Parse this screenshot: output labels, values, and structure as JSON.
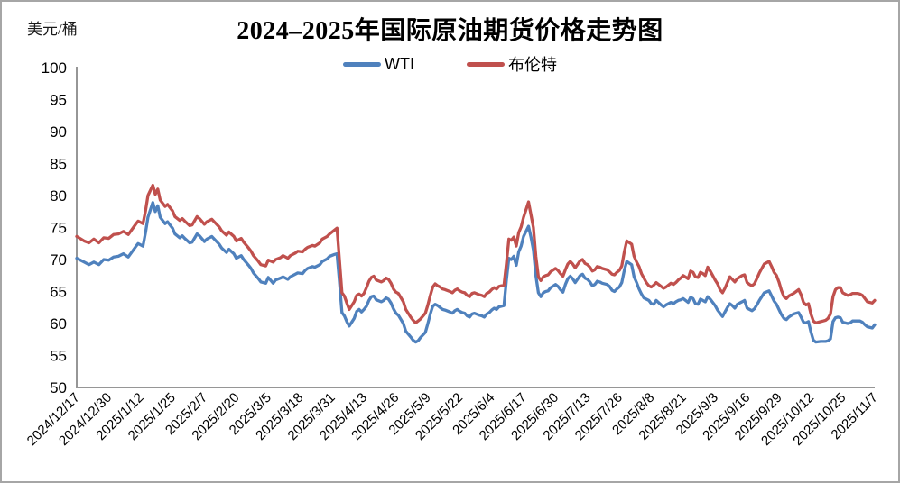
{
  "window": {
    "background": "#ffffff",
    "frame_border_color": "#a6a6a6"
  },
  "header": {
    "title": "2024–2025年国际原油期货价格走势图",
    "y_axis_unit": "美元/桶"
  },
  "legend": {
    "position": "top-center",
    "items": [
      {
        "label": "WTI",
        "color": "#4F81BD"
      },
      {
        "label": "布伦特",
        "color": "#C0504D"
      }
    ]
  },
  "chart_data": {
    "type": "line",
    "title": "2024–2025年国际原油期货价格走势图",
    "xlabel": "",
    "ylabel": "美元/桶",
    "ylim": [
      50,
      100
    ],
    "y_ticks": [
      100,
      95,
      90,
      85,
      80,
      75,
      70,
      65,
      60,
      55,
      50
    ],
    "grid": false,
    "axis_color": "#969696",
    "x_labels": [
      "2024/12/17",
      "2024/12/30",
      "2025/1/12",
      "2025/1/25",
      "2025/2/7",
      "2025/2/20",
      "2025/3/5",
      "2025/3/18",
      "2025/3/31",
      "2025/4/13",
      "2025/4/26",
      "2025/5/9",
      "2025/5/22",
      "2025/6/4",
      "2025/6/17",
      "2025/6/30",
      "2025/7/13",
      "2025/7/26",
      "2025/8/8",
      "2025/8/21",
      "2025/9/3",
      "2025/9/16",
      "2025/9/29",
      "2025/10/12",
      "2025/10/25",
      "2025/11/7"
    ],
    "x_label_interval_days": 13,
    "x_range_days": [
      0,
      325
    ],
    "x_days": [
      0,
      3,
      5,
      7,
      9,
      11,
      13,
      15,
      17,
      19,
      21,
      24,
      25,
      27,
      28,
      29,
      31,
      32,
      33,
      34,
      36,
      37,
      39,
      40,
      42,
      43,
      44,
      46,
      47,
      49,
      50,
      52,
      53,
      55,
      56,
      58,
      59,
      61,
      62,
      64,
      65,
      67,
      68,
      70,
      71,
      72,
      74,
      75,
      77,
      78,
      80,
      81,
      83,
      84,
      86,
      87,
      89,
      90,
      92,
      93,
      94,
      96,
      97,
      99,
      100,
      102,
      103,
      105,
      106,
      107,
      108,
      109,
      110,
      111,
      113,
      114,
      115,
      116,
      117,
      118,
      119,
      120,
      121,
      122,
      124,
      125,
      126,
      127,
      128,
      129,
      130,
      131,
      133,
      134,
      136,
      137,
      138,
      139,
      140,
      142,
      143,
      144,
      145,
      146,
      147,
      148,
      149,
      150,
      152,
      153,
      154,
      155,
      156,
      157,
      158,
      159,
      160,
      161,
      162,
      164,
      165,
      166,
      167,
      168,
      169,
      170,
      171,
      172,
      174,
      175,
      176,
      177,
      178,
      179,
      180,
      181,
      182,
      184,
      185,
      186,
      187,
      188,
      189,
      190,
      191,
      192,
      193,
      195,
      196,
      197,
      198,
      199,
      200,
      201,
      202,
      203,
      205,
      206,
      207,
      208,
      209,
      210,
      211,
      212,
      213,
      214,
      216,
      217,
      218,
      219,
      220,
      221,
      222,
      223,
      224,
      226,
      227,
      228,
      229,
      230,
      231,
      232,
      233,
      234,
      235,
      236,
      238,
      239,
      240,
      241,
      242,
      243,
      244,
      245,
      246,
      247,
      249,
      250,
      251,
      252,
      253,
      254,
      255,
      256,
      257,
      258,
      260,
      261,
      262,
      263,
      264,
      265,
      266,
      267,
      268,
      269,
      271,
      272,
      273,
      274,
      275,
      276,
      277,
      278,
      279,
      280,
      282,
      283,
      284,
      285,
      286,
      287,
      288,
      289,
      290,
      292,
      293,
      294,
      295,
      296,
      297,
      298,
      299,
      300,
      301,
      303,
      304,
      305,
      306,
      307,
      308,
      309,
      310,
      311,
      312,
      314,
      315,
      316,
      317,
      318,
      319,
      320,
      321,
      322,
      324,
      325
    ],
    "series": [
      {
        "name": "WTI",
        "color": "#4F81BD",
        "values": [
          70.2,
          69.6,
          69.2,
          69.6,
          69.2,
          70.0,
          69.9,
          70.4,
          70.5,
          70.9,
          70.4,
          72.0,
          72.5,
          72.1,
          74.2,
          76.6,
          78.9,
          77.5,
          78.4,
          76.6,
          75.6,
          75.9,
          74.9,
          74.0,
          73.4,
          73.7,
          73.3,
          72.6,
          72.7,
          74.0,
          73.7,
          72.8,
          73.2,
          73.6,
          73.2,
          72.4,
          71.8,
          71.1,
          71.6,
          70.9,
          70.2,
          70.6,
          70.0,
          69.1,
          68.6,
          67.9,
          67.0,
          66.5,
          66.3,
          67.2,
          66.3,
          66.8,
          67.1,
          67.3,
          66.9,
          67.3,
          67.7,
          67.9,
          67.8,
          68.3,
          68.6,
          68.9,
          68.8,
          69.2,
          69.7,
          70.1,
          70.5,
          70.8,
          70.9,
          66.6,
          61.7,
          61.2,
          60.3,
          59.6,
          60.8,
          61.9,
          62.2,
          61.8,
          62.2,
          62.7,
          63.6,
          64.2,
          64.3,
          63.7,
          63.4,
          63.6,
          64.0,
          63.8,
          63.2,
          62.3,
          61.6,
          61.3,
          60.0,
          58.8,
          57.9,
          57.4,
          57.1,
          57.3,
          57.8,
          58.6,
          60.0,
          61.5,
          62.7,
          63.0,
          62.8,
          62.5,
          62.2,
          62.1,
          61.8,
          61.6,
          62.0,
          62.2,
          61.9,
          61.7,
          61.6,
          61.2,
          61.0,
          61.5,
          61.6,
          61.3,
          61.2,
          61.0,
          61.5,
          61.7,
          62.1,
          62.4,
          62.2,
          62.6,
          62.8,
          66.8,
          70.2,
          70.0,
          70.5,
          69.1,
          71.2,
          72.1,
          73.6,
          75.2,
          73.5,
          71.5,
          67.5,
          64.8,
          64.2,
          64.8,
          65.0,
          65.1,
          65.6,
          66.1,
          65.8,
          65.3,
          64.9,
          66.1,
          67.0,
          67.4,
          67.0,
          66.4,
          67.5,
          67.7,
          67.1,
          66.9,
          66.5,
          65.9,
          66.1,
          66.6,
          66.5,
          66.3,
          66.1,
          65.8,
          65.2,
          65.0,
          65.4,
          65.7,
          66.4,
          68.3,
          69.7,
          69.2,
          67.3,
          66.4,
          65.4,
          64.6,
          64.0,
          63.8,
          63.6,
          63.1,
          63.0,
          63.6,
          62.9,
          62.6,
          62.9,
          63.1,
          63.3,
          63.1,
          63.4,
          63.6,
          63.7,
          63.9,
          63.3,
          64.1,
          63.9,
          63.1,
          63.0,
          63.8,
          63.6,
          63.4,
          64.2,
          63.8,
          62.8,
          62.1,
          61.6,
          61.1,
          61.8,
          62.5,
          63.1,
          62.8,
          62.4,
          63.0,
          63.4,
          63.6,
          62.4,
          62.2,
          62.0,
          62.3,
          62.9,
          63.6,
          64.2,
          64.8,
          65.1,
          64.3,
          63.5,
          63.0,
          62.2,
          61.4,
          60.8,
          60.6,
          61.0,
          61.5,
          61.6,
          61.7,
          61.0,
          60.2,
          60.1,
          60.3,
          58.7,
          57.4,
          57.1,
          57.2,
          57.2,
          57.2,
          57.3,
          57.6,
          60.3,
          60.9,
          61.0,
          60.9,
          60.2,
          60.0,
          60.1,
          60.4,
          60.4,
          60.4,
          60.4,
          60.2,
          59.8,
          59.5,
          59.3,
          59.8
        ]
      },
      {
        "name": "布伦特",
        "color": "#C0504D",
        "values": [
          73.6,
          72.9,
          72.6,
          73.2,
          72.6,
          73.4,
          73.3,
          73.9,
          74.0,
          74.4,
          73.9,
          75.5,
          76.0,
          75.6,
          77.6,
          80.0,
          81.6,
          80.2,
          81.0,
          79.3,
          78.3,
          78.6,
          77.6,
          76.7,
          76.1,
          76.4,
          76.0,
          75.3,
          75.4,
          76.7,
          76.4,
          75.5,
          75.9,
          76.3,
          75.9,
          75.1,
          74.5,
          73.8,
          74.3,
          73.6,
          72.9,
          73.3,
          72.7,
          71.8,
          71.3,
          70.6,
          69.7,
          69.2,
          69.0,
          69.9,
          69.6,
          70.0,
          70.3,
          70.6,
          70.2,
          70.6,
          71.0,
          71.3,
          71.2,
          71.6,
          71.9,
          72.2,
          72.1,
          72.6,
          73.2,
          73.6,
          74.0,
          74.6,
          74.9,
          70.0,
          64.8,
          64.3,
          63.2,
          62.2,
          63.4,
          64.4,
          64.6,
          64.3,
          64.7,
          65.6,
          66.6,
          67.2,
          67.4,
          66.8,
          66.5,
          66.7,
          67.1,
          66.9,
          66.3,
          65.4,
          64.9,
          64.7,
          63.4,
          62.2,
          61.0,
          60.5,
          60.1,
          60.4,
          60.7,
          61.6,
          62.9,
          64.4,
          65.7,
          66.2,
          65.9,
          65.7,
          65.4,
          65.3,
          65.0,
          64.8,
          65.2,
          65.4,
          65.1,
          64.9,
          64.8,
          64.4,
          64.2,
          64.7,
          64.8,
          64.5,
          64.4,
          64.2,
          64.7,
          64.9,
          65.3,
          65.6,
          65.4,
          65.8,
          66.0,
          69.4,
          73.2,
          73.0,
          73.5,
          72.1,
          74.2,
          75.1,
          76.6,
          79.0,
          77.0,
          75.0,
          70.5,
          67.3,
          66.7,
          67.3,
          67.5,
          67.6,
          68.1,
          68.6,
          68.3,
          67.8,
          67.4,
          68.4,
          69.3,
          69.7,
          69.3,
          68.7,
          69.8,
          70.0,
          69.4,
          69.2,
          68.8,
          68.2,
          68.4,
          68.9,
          68.8,
          68.6,
          68.4,
          68.1,
          67.7,
          67.6,
          68.0,
          68.3,
          69.0,
          71.2,
          72.9,
          72.4,
          70.5,
          69.6,
          68.9,
          67.8,
          67.1,
          66.4,
          65.9,
          65.7,
          66.0,
          66.4,
          65.8,
          65.5,
          65.7,
          66.0,
          66.3,
          66.1,
          66.4,
          66.8,
          67.1,
          67.5,
          67.0,
          68.2,
          68.0,
          67.3,
          67.2,
          68.0,
          67.8,
          67.5,
          68.8,
          68.2,
          66.8,
          66.2,
          65.3,
          64.8,
          65.5,
          66.4,
          67.3,
          66.9,
          66.5,
          67.0,
          67.5,
          67.6,
          66.4,
          66.1,
          65.9,
          66.2,
          67.0,
          67.9,
          68.6,
          69.3,
          69.7,
          68.9,
          68.0,
          67.5,
          66.5,
          65.2,
          64.2,
          63.9,
          64.3,
          64.7,
          65.0,
          65.3,
          64.5,
          63.3,
          62.9,
          63.1,
          61.5,
          60.4,
          60.1,
          60.3,
          60.4,
          60.5,
          60.8,
          61.5,
          64.2,
          65.3,
          65.6,
          65.6,
          64.8,
          64.4,
          64.5,
          64.7,
          64.7,
          64.7,
          64.6,
          64.4,
          63.9,
          63.4,
          63.2,
          63.6
        ]
      }
    ],
    "legend_position": "top-center"
  }
}
